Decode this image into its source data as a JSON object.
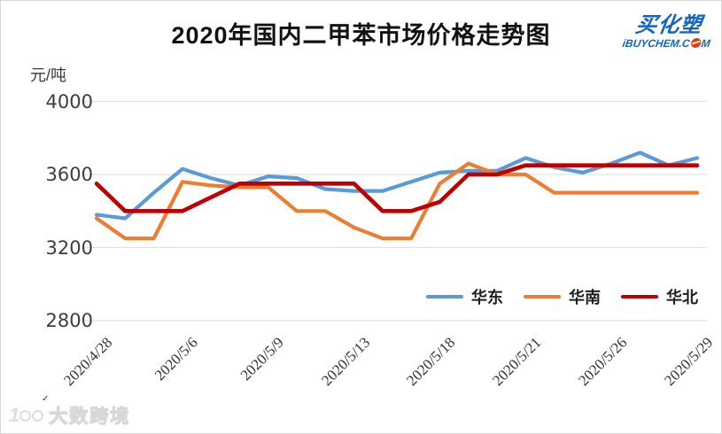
{
  "title": "2020年国内二甲苯市场价格走势图",
  "logo": {
    "name": "买化塑",
    "domain_prefix": "iBUYCHEM.C",
    "domain_suffix": "M",
    "brand_color": "#1565c0",
    "globe_color": "#e8380d"
  },
  "y_axis": {
    "unit_label": "元/吨",
    "ticks": [
      4000,
      3600,
      3200,
      2800
    ]
  },
  "legend": [
    {
      "label": "华东",
      "color": "#5B9BD5"
    },
    {
      "label": "华南",
      "color": "#ED7D31"
    },
    {
      "label": "华北",
      "color": "#C00000"
    }
  ],
  "watermark": {
    "text": "大数跨境"
  },
  "chart_data": {
    "type": "line",
    "title": "2020年国内二甲苯市场价格走势图",
    "ylabel": "元/吨",
    "ylim": [
      2800,
      4000
    ],
    "grid": true,
    "legend_position": "bottom-right-inside",
    "n_points": 22,
    "x_tick_labels": [
      "2020/4/28",
      "2020/5/6",
      "2020/5/9",
      "2020/5/13",
      "2020/5/18",
      "2020/5/21",
      "2020/5/26",
      "2020/5/29"
    ],
    "x_tick_indices": [
      0,
      3,
      6,
      9,
      12,
      15,
      18,
      21
    ],
    "series": [
      {
        "name": "华东",
        "color": "#5B9BD5",
        "values": [
          3380,
          3360,
          3500,
          3630,
          3580,
          3540,
          3590,
          3580,
          3520,
          3510,
          3510,
          3560,
          3610,
          3620,
          3620,
          3690,
          3640,
          3610,
          3660,
          3720,
          3650,
          3690
        ]
      },
      {
        "name": "华南",
        "color": "#ED7D31",
        "values": [
          3360,
          3250,
          3250,
          3560,
          3540,
          3530,
          3530,
          3400,
          3400,
          3310,
          3250,
          3250,
          3550,
          3660,
          3600,
          3600,
          3500,
          3500,
          3500,
          3500,
          3500,
          3500
        ]
      },
      {
        "name": "华北",
        "color": "#C00000",
        "values": [
          3550,
          3400,
          3400,
          3400,
          3475,
          3550,
          3550,
          3550,
          3550,
          3550,
          3400,
          3400,
          3450,
          3600,
          3600,
          3650,
          3650,
          3650,
          3650,
          3650,
          3650,
          3650
        ]
      }
    ]
  }
}
